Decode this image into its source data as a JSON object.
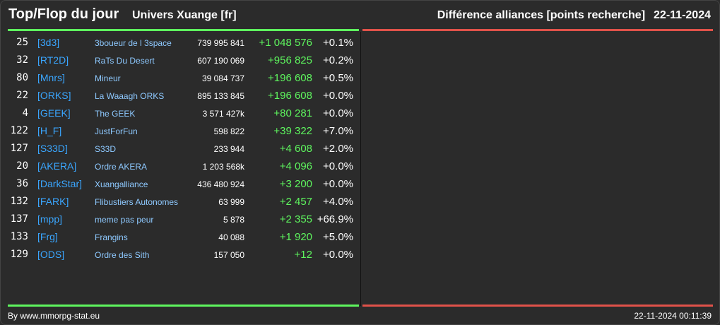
{
  "header": {
    "title": "Top/Flop du jour",
    "universe": "Univers Xuange [fr]",
    "category": "Différence alliances [points recherche]",
    "date": "22-11-2024"
  },
  "colors": {
    "top_line": "#5ef55e",
    "flop_line": "#e0524a",
    "tag": "#3aa6ff",
    "name": "#8ec9ff",
    "diff": "#5ef55e"
  },
  "rows": [
    {
      "rank": "25",
      "tag": "[3d3]",
      "name": "3boueur de l 3space",
      "points": "739 995 841",
      "diff": "+1 048 576",
      "pct": "+0.1%"
    },
    {
      "rank": "32",
      "tag": "[RT2D]",
      "name": "RaTs Du Desert",
      "points": "607 190 069",
      "diff": "+956 825",
      "pct": "+0.2%"
    },
    {
      "rank": "80",
      "tag": "[Mnrs]",
      "name": "Mineur",
      "points": "39 084 737",
      "diff": "+196 608",
      "pct": "+0.5%"
    },
    {
      "rank": "22",
      "tag": "[ORKS]",
      "name": "La Waaagh ORKS",
      "points": "895 133 845",
      "diff": "+196 608",
      "pct": "+0.0%"
    },
    {
      "rank": "4",
      "tag": "[GEEK]",
      "name": "The GEEK",
      "points": "3 571 427k",
      "diff": "+80 281",
      "pct": "+0.0%"
    },
    {
      "rank": "122",
      "tag": "[H_F]",
      "name": "JustForFun",
      "points": "598 822",
      "diff": "+39 322",
      "pct": "+7.0%"
    },
    {
      "rank": "127",
      "tag": "[S33D]",
      "name": "S33D",
      "points": "233 944",
      "diff": "+4 608",
      "pct": "+2.0%"
    },
    {
      "rank": "20",
      "tag": "[AKERA]",
      "name": "Ordre AKERA",
      "points": "1 203 568k",
      "diff": "+4 096",
      "pct": "+0.0%"
    },
    {
      "rank": "36",
      "tag": "[DarkStar]",
      "name": "Xuangalliance",
      "points": "436 480 924",
      "diff": "+3 200",
      "pct": "+0.0%"
    },
    {
      "rank": "132",
      "tag": "[FARK]",
      "name": "Flibustiers Autonomes",
      "points": "63 999",
      "diff": "+2 457",
      "pct": "+4.0%"
    },
    {
      "rank": "137",
      "tag": "[mpp]",
      "name": "meme pas peur",
      "points": "5 878",
      "diff": "+2 355",
      "pct": "+66.9%"
    },
    {
      "rank": "133",
      "tag": "[Frg]",
      "name": "Frangins",
      "points": "40 088",
      "diff": "+1 920",
      "pct": "+5.0%"
    },
    {
      "rank": "129",
      "tag": "[ODS]",
      "name": "Ordre des Sith",
      "points": "157 050",
      "diff": "+12",
      "pct": "+0.0%"
    }
  ],
  "footer": {
    "source": "By www.mmorpg-stat.eu",
    "timestamp": "22-11-2024 00:11:39"
  }
}
